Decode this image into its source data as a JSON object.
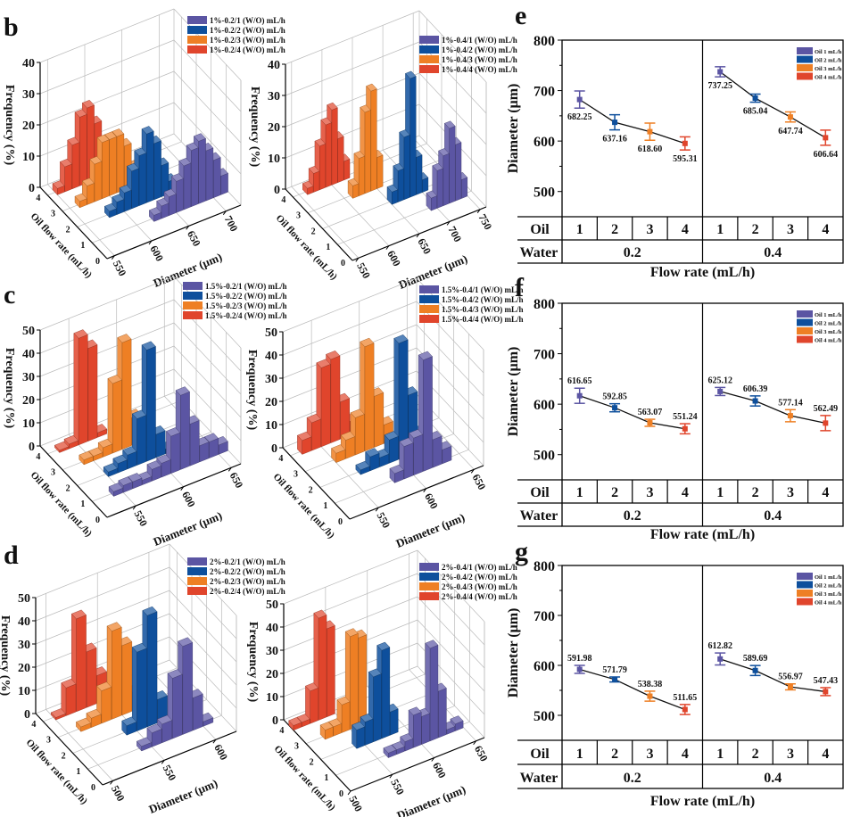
{
  "panel_labels": {
    "b": "b",
    "c": "c",
    "d": "d",
    "e": "e",
    "f": "f",
    "g": "g"
  },
  "colors": {
    "oil1": "#5b55a3",
    "oil2": "#0e4f9c",
    "oil3": "#ee7f24",
    "oil4": "#e0452c"
  },
  "chart_data": [
    {
      "id": "b-left",
      "type": "bar3d",
      "xlabel": "Diameter (μm)",
      "ylabel": "Oil flow rate (mL/h)",
      "zlabel": "Frequency (%)",
      "xlim": [
        540,
        720
      ],
      "xticks": [
        550,
        600,
        650,
        700
      ],
      "ylim": [
        0,
        4
      ],
      "yticks": [
        0,
        1,
        2,
        3,
        4
      ],
      "zlim": [
        0,
        40
      ],
      "zticks": [
        0,
        10,
        20,
        30,
        40
      ],
      "bin_width": 10,
      "series": [
        {
          "name": "1%-0.2/1 (W/O) mL/h",
          "oil": 1,
          "color": "#5b55a3",
          "start": 620,
          "values": [
            2,
            4,
            6,
            10,
            14,
            18,
            20,
            16,
            12,
            6
          ]
        },
        {
          "name": "1%-0.2/2 (W/O) mL/h",
          "oil": 2,
          "color": "#0e4f9c",
          "start": 580,
          "values": [
            2,
            4,
            6,
            12,
            16,
            22,
            18,
            10,
            4
          ]
        },
        {
          "name": "1%-0.2/3 (W/O) mL/h",
          "oil": 3,
          "color": "#ee7f24",
          "start": 560,
          "values": [
            2,
            6,
            12,
            18,
            18,
            18,
            14,
            6
          ]
        },
        {
          "name": "1%-0.2/4 (W/O) mL/h",
          "oil": 4,
          "color": "#e0452c",
          "start": 550,
          "values": [
            2,
            8,
            14,
            22,
            24,
            18,
            10
          ]
        }
      ]
    },
    {
      "id": "b-right",
      "type": "bar3d",
      "xlabel": "Diameter (μm)",
      "ylabel": "Oil flow rate (mL/h)",
      "zlabel": "Frequency (%)",
      "xlim": [
        540,
        760
      ],
      "xticks": [
        550,
        600,
        650,
        700,
        750
      ],
      "ylim": [
        0,
        4
      ],
      "yticks": [
        0,
        1,
        2,
        3,
        4
      ],
      "zlim": [
        0,
        40
      ],
      "zticks": [
        0,
        10,
        20,
        30,
        40
      ],
      "bin_width": 10,
      "series": [
        {
          "name": "1%-0.4/1 (W/O) mL/h",
          "oil": 1,
          "color": "#5b55a3",
          "start": 690,
          "values": [
            4,
            12,
            16,
            24,
            18,
            6
          ]
        },
        {
          "name": "1%-0.4/2 (W/O) mL/h",
          "oil": 2,
          "color": "#0e4f9c",
          "start": 650,
          "values": [
            4,
            10,
            20,
            38,
            12,
            4
          ]
        },
        {
          "name": "1%-0.4/3 (W/O) mL/h",
          "oil": 3,
          "color": "#ee7f24",
          "start": 610,
          "values": [
            4,
            12,
            26,
            32,
            10
          ]
        },
        {
          "name": "1%-0.4/4 (W/O) mL/h",
          "oil": 4,
          "color": "#e0452c",
          "start": 560,
          "values": [
            2,
            6,
            14,
            20,
            24,
            14,
            6
          ]
        }
      ]
    },
    {
      "id": "c-left",
      "type": "bar3d",
      "xlabel": "Diameter (μm)",
      "ylabel": "Oil flow rate (mL/h)",
      "zlabel": "Frequency (%)",
      "xlim": [
        520,
        660
      ],
      "xticks": [
        550,
        600,
        650
      ],
      "ylim": [
        0,
        4
      ],
      "yticks": [
        0,
        1,
        2,
        3,
        4
      ],
      "zlim": [
        0,
        50
      ],
      "zticks": [
        0,
        10,
        20,
        30,
        40,
        50
      ],
      "bin_width": 10,
      "series": [
        {
          "name": "1.5%-0.2/1 (W/O) mL/h",
          "oil": 1,
          "color": "#5b55a3",
          "start": 540,
          "values": [
            2,
            3,
            3,
            2,
            5,
            6,
            16,
            32,
            18,
            7,
            7,
            4
          ]
        },
        {
          "name": "1.5%-0.2/2 (W/O) mL/h",
          "oil": 2,
          "color": "#0e4f9c",
          "start": 550,
          "values": [
            2,
            4,
            6,
            20,
            48,
            10,
            2
          ]
        },
        {
          "name": "1.5%-0.2/3 (W/O) mL/h",
          "oil": 3,
          "color": "#ee7f24",
          "start": 540,
          "values": [
            2,
            2,
            4,
            30,
            46,
            12,
            4,
            1
          ]
        },
        {
          "name": "1.5%-0.2/4 (W/O) mL/h",
          "oil": 4,
          "color": "#e0452c",
          "start": 530,
          "values": [
            1,
            2,
            46,
            40,
            2
          ]
        }
      ]
    },
    {
      "id": "c-right",
      "type": "bar3d",
      "xlabel": "Diameter (μm)",
      "ylabel": "Oil flow rate (mL/h)",
      "zlabel": "Frequency (%)",
      "xlim": [
        520,
        660
      ],
      "xticks": [
        550,
        600,
        650
      ],
      "ylim": [
        0,
        4
      ],
      "yticks": [
        0,
        1,
        2,
        3,
        4
      ],
      "zlim": [
        0,
        50
      ],
      "zticks": [
        0,
        10,
        20,
        30,
        40,
        50
      ],
      "bin_width": 10,
      "series": [
        {
          "name": "1.5%-0.4/1 (W/O) mL/h",
          "oil": 1,
          "color": "#5b55a3",
          "start": 580,
          "values": [
            4,
            14,
            16,
            48,
            12,
            6
          ]
        },
        {
          "name": "1.5%-0.4/2 (W/O) mL/h",
          "oil": 2,
          "color": "#0e4f9c",
          "start": 560,
          "values": [
            2,
            6,
            4,
            10,
            50,
            26,
            8
          ]
        },
        {
          "name": "1.5%-0.4/3 (W/O) mL/h",
          "oil": 3,
          "color": "#ee7f24",
          "start": 550,
          "values": [
            4,
            8,
            16,
            45,
            22,
            8
          ]
        },
        {
          "name": "1.5%-0.4/4 (W/O) mL/h",
          "oil": 4,
          "color": "#e0452c",
          "start": 530,
          "values": [
            6,
            12,
            34,
            36,
            16,
            6
          ]
        }
      ]
    },
    {
      "id": "d-left",
      "type": "bar3d",
      "xlabel": "Diameter (μm)",
      "ylabel": "Oil flow rate (mL/h)",
      "zlabel": "Frequency (%)",
      "xlim": [
        490,
        620
      ],
      "xticks": [
        500,
        550,
        600
      ],
      "ylim": [
        0,
        4
      ],
      "yticks": [
        0,
        1,
        2,
        3,
        4
      ],
      "zlim": [
        0,
        50
      ],
      "zticks": [
        0,
        10,
        20,
        30,
        40,
        50
      ],
      "bin_width": 10,
      "series": [
        {
          "name": "2%-0.2/1 (W/O) mL/h",
          "oil": 1,
          "color": "#5b55a3",
          "start": 540,
          "values": [
            2,
            6,
            8,
            26,
            38,
            14,
            2
          ]
        },
        {
          "name": "2%-0.2/2 (W/O) mL/h",
          "oil": 2,
          "color": "#0e4f9c",
          "start": 540,
          "values": [
            4,
            34,
            48,
            10
          ]
        },
        {
          "name": "2%-0.2/3 (W/O) mL/h",
          "oil": 3,
          "color": "#ee7f24",
          "start": 510,
          "values": [
            2,
            4,
            14,
            38,
            30,
            8,
            2
          ]
        },
        {
          "name": "2%-0.2/4 (W/O) mL/h",
          "oil": 4,
          "color": "#e0452c",
          "start": 500,
          "values": [
            1,
            12,
            40,
            24,
            12,
            2
          ]
        }
      ]
    },
    {
      "id": "d-right",
      "type": "bar3d",
      "xlabel": "Diameter (μm)",
      "ylabel": "Oil flow rate (mL/h)",
      "zlabel": "Frequency (%)",
      "xlim": [
        500,
        660
      ],
      "xticks": [
        500,
        550,
        600,
        650
      ],
      "ylim": [
        0,
        4
      ],
      "yticks": [
        0,
        1,
        2,
        3,
        4
      ],
      "zlim": [
        0,
        50
      ],
      "zticks": [
        0,
        10,
        20,
        30,
        40,
        50
      ],
      "bin_width": 10,
      "series": [
        {
          "name": "2%-0.4/1 (W/O) mL/h",
          "oil": 1,
          "color": "#5b55a3",
          "start": 560,
          "values": [
            2,
            2,
            4,
            14,
            12,
            40,
            20,
            2,
            3
          ]
        },
        {
          "name": "2%-0.4/2 (W/O) mL/h",
          "oil": 2,
          "color": "#0e4f9c",
          "start": 540,
          "values": [
            8,
            10,
            28,
            38,
            10
          ]
        },
        {
          "name": "2%-0.4/3 (W/O) mL/h",
          "oil": 3,
          "color": "#ee7f24",
          "start": 520,
          "values": [
            4,
            4,
            12,
            40,
            38
          ]
        },
        {
          "name": "2%-0.4/4 (W/O) mL/h",
          "oil": 4,
          "color": "#e0452c",
          "start": 500,
          "values": [
            2,
            2,
            14,
            44,
            38
          ]
        }
      ]
    },
    {
      "id": "e",
      "type": "line",
      "ylabel": "Diameter (μm)",
      "xlabel": "Flow rate (mL/h)",
      "ylim": [
        450,
        800
      ],
      "yticks": [
        500,
        600,
        700,
        800
      ],
      "row_labels": {
        "oil": "Oil",
        "water": "Water"
      },
      "oil_categories": [
        "1",
        "2",
        "3",
        "4"
      ],
      "water_groups": [
        "0.2",
        "0.4"
      ],
      "legend": [
        "Oil 1 mL/h",
        "Oil 2 mL/h",
        "Oil 3 mL/h",
        "Oil 4 mL/h"
      ],
      "groups": [
        {
          "water": "0.2",
          "values": [
            682.25,
            637.16,
            618.6,
            595.31
          ],
          "labels": [
            "682.25",
            "637.16",
            "618.60",
            "595.31"
          ],
          "errors": [
            17,
            15,
            17,
            13
          ]
        },
        {
          "water": "0.4",
          "values": [
            737.25,
            685.04,
            647.74,
            606.64
          ],
          "labels": [
            "737.25",
            "685.04",
            "647.74",
            "606.64"
          ],
          "errors": [
            10,
            8,
            10,
            15
          ]
        }
      ]
    },
    {
      "id": "f",
      "type": "line",
      "ylabel": "Diameter (μm)",
      "xlabel": "Flow rate (mL/h)",
      "ylim": [
        450,
        800
      ],
      "yticks": [
        500,
        600,
        700,
        800
      ],
      "row_labels": {
        "oil": "Oil",
        "water": "Water"
      },
      "oil_categories": [
        "1",
        "2",
        "3",
        "4"
      ],
      "water_groups": [
        "0.2",
        "0.4"
      ],
      "legend": [
        "Oil 1 mL/h",
        "Oil 2 mL/h",
        "Oil 3 mL/h",
        "Oil 4 mL/h"
      ],
      "groups": [
        {
          "water": "0.2",
          "values": [
            616.65,
            592.85,
            563.07,
            551.24
          ],
          "labels": [
            "616.65",
            "592.85",
            "563.07",
            "551.24"
          ],
          "errors": [
            15,
            8,
            7,
            10
          ]
        },
        {
          "water": "0.4",
          "values": [
            625.12,
            606.39,
            577.14,
            562.49
          ],
          "labels": [
            "625.12",
            "606.39",
            "577.14",
            "562.49"
          ],
          "errors": [
            8,
            10,
            12,
            15
          ]
        }
      ]
    },
    {
      "id": "g",
      "type": "line",
      "ylabel": "Diameter (μm)",
      "xlabel": "Flow rate (mL/h)",
      "ylim": [
        450,
        800
      ],
      "yticks": [
        500,
        600,
        700,
        800
      ],
      "row_labels": {
        "oil": "Oil",
        "water": "Water"
      },
      "oil_categories": [
        "1",
        "2",
        "3",
        "4"
      ],
      "water_groups": [
        "0.2",
        "0.4"
      ],
      "legend": [
        "Oil 1 mL/h",
        "Oil 2 mL/h",
        "Oil 3 mL/h",
        "Oil 4 mL/h"
      ],
      "groups": [
        {
          "water": "0.2",
          "values": [
            591.98,
            571.79,
            538.38,
            511.65
          ],
          "labels": [
            "591.98",
            "571.79",
            "538.38",
            "511.65"
          ],
          "errors": [
            8,
            5,
            10,
            10
          ]
        },
        {
          "water": "0.4",
          "values": [
            612.82,
            589.69,
            556.97,
            547.43
          ],
          "labels": [
            "612.82",
            "589.69",
            "556.97",
            "547.43"
          ],
          "errors": [
            12,
            10,
            6,
            8
          ]
        }
      ]
    }
  ]
}
